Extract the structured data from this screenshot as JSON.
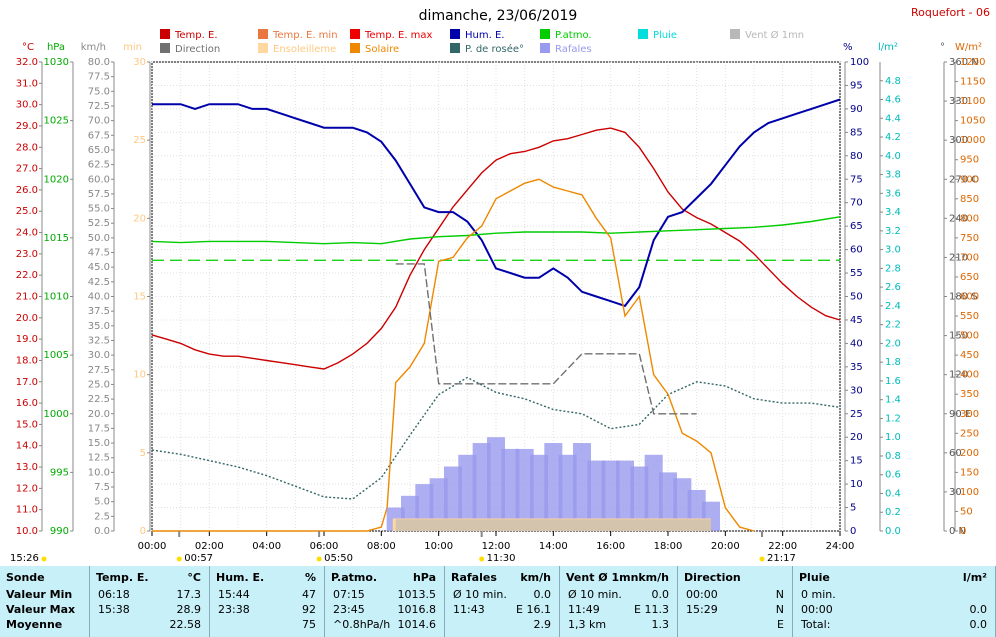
{
  "header": {
    "title": "dimanche, 23/06/2019",
    "station": "Roquefort - 06"
  },
  "legend": [
    {
      "label": "Temp. E.",
      "color": "#cc0000"
    },
    {
      "label": "Temp. E. min",
      "color": "#e87840"
    },
    {
      "label": "Temp. E. max",
      "color": "#ee0000"
    },
    {
      "label": "Hum. E.",
      "color": "#0000aa"
    },
    {
      "label": "P.atmo.",
      "color": "#00cc00"
    },
    {
      "label": "Pluie",
      "color": "#00dddd"
    },
    {
      "label": "Vent Ø 1mn",
      "color": "#b8b8b8"
    },
    {
      "label": "Direction",
      "color": "#707070"
    },
    {
      "label": "Ensoleilleme",
      "color": "#ffd8a0"
    },
    {
      "label": "Solaire",
      "color": "#ee8800"
    },
    {
      "label": "P. de rosée°",
      "color": "#336666"
    },
    {
      "label": "Rafales",
      "color": "#9999ee"
    }
  ],
  "axes_units": {
    "temp": "°C",
    "press": "hPa",
    "wind": "km/h",
    "sun": "min",
    "hum": "%",
    "rain": "l/m²",
    "dir": "°",
    "solar": "W/m²"
  },
  "chart_data": {
    "type": "line",
    "x_unit": "time of day (hours)",
    "xlim": [
      0,
      24
    ],
    "x_ticks": [
      "00:00",
      "02:00",
      "04:00",
      "06:00",
      "08:00",
      "10:00",
      "12:00",
      "14:00",
      "16:00",
      "18:00",
      "20:00",
      "22:00",
      "24:00"
    ],
    "axes": {
      "temp": {
        "range": [
          10,
          32
        ],
        "ticks": [
          "10.0",
          "11.0",
          "12.0",
          "13.0",
          "14.0",
          "15.0",
          "16.0",
          "17.0",
          "18.0",
          "19.0",
          "20.0",
          "21.0",
          "22.0",
          "23.0",
          "24.0",
          "25.0",
          "26.0",
          "27.0",
          "28.0",
          "29.0",
          "30.0",
          "31.0",
          "32.0"
        ],
        "color": "#cc0000"
      },
      "press": {
        "range": [
          990,
          1030
        ],
        "ticks": [
          "990",
          "995",
          "1000",
          "1005",
          "1010",
          "1015",
          "1020",
          "1025",
          "1030"
        ],
        "color": "#00aa00"
      },
      "wind": {
        "range": [
          0,
          80
        ],
        "ticks": [
          "0.0",
          "2.5",
          "5.0",
          "7.5",
          "10.0",
          "12.5",
          "15.0",
          "17.5",
          "20.0",
          "22.5",
          "25.0",
          "27.5",
          "30.0",
          "32.5",
          "35.0",
          "37.5",
          "40.0",
          "42.5",
          "45.0",
          "47.5",
          "50.0",
          "52.5",
          "55.0",
          "57.5",
          "60.0",
          "62.5",
          "65.0",
          "67.5",
          "70.0",
          "72.5",
          "75.0",
          "77.5",
          "80.0"
        ],
        "color": "#888888"
      },
      "sun": {
        "range": [
          0,
          30
        ],
        "ticks": [
          "0",
          "5",
          "10",
          "15",
          "20",
          "25",
          "30"
        ],
        "color": "#ffd8a0"
      },
      "hum": {
        "range": [
          0,
          100
        ],
        "ticks": [
          "0",
          "5",
          "10",
          "15",
          "20",
          "25",
          "30",
          "35",
          "40",
          "45",
          "50",
          "55",
          "60",
          "65",
          "70",
          "75",
          "80",
          "85",
          "90",
          "95",
          "100"
        ],
        "color": "#000088"
      },
      "rain": {
        "range": [
          0,
          5
        ],
        "ticks": [
          "0.0",
          "0.2",
          "0.4",
          "0.6",
          "0.8",
          "1.0",
          "1.2",
          "1.4",
          "1.6",
          "1.8",
          "2.0",
          "2.2",
          "2.4",
          "2.6",
          "2.8",
          "3.0",
          "3.2",
          "3.4",
          "3.6",
          "3.8",
          "4.0",
          "4.2",
          "4.4",
          "4.6",
          "4.8"
        ],
        "color": "#00cccc"
      },
      "dir": {
        "range": [
          0,
          360
        ],
        "ticks": [
          "0 N",
          "30",
          "60",
          "90 E",
          "120",
          "150",
          "180 S",
          "210",
          "240",
          "270 O",
          "300",
          "330",
          "360 N"
        ],
        "color": "#555555"
      },
      "solar": {
        "range": [
          0,
          1200
        ],
        "ticks": [
          "0",
          "50",
          "100",
          "150",
          "200",
          "250",
          "300",
          "350",
          "400",
          "450",
          "500",
          "550",
          "600",
          "650",
          "700",
          "750",
          "800",
          "850",
          "900",
          "950",
          "1000",
          "1050",
          "1100",
          "1150",
          "1200"
        ],
        "color": "#dd6600"
      }
    },
    "series": [
      {
        "name": "Temp. E.",
        "axis": "temp",
        "color": "#cc0000",
        "x": [
          0,
          0.5,
          1,
          1.5,
          2,
          2.5,
          3,
          3.5,
          4,
          4.5,
          5,
          5.5,
          6,
          6.5,
          7,
          7.5,
          8,
          8.5,
          9,
          9.5,
          10,
          10.5,
          11,
          11.5,
          12,
          12.5,
          13,
          13.5,
          14,
          14.5,
          15,
          15.5,
          16,
          16.5,
          17,
          17.5,
          18,
          18.5,
          19,
          19.5,
          20,
          20.5,
          21,
          21.5,
          22,
          22.5,
          23,
          23.5,
          24
        ],
        "y": [
          19.2,
          19.0,
          18.8,
          18.5,
          18.3,
          18.2,
          18.2,
          18.1,
          18.0,
          17.9,
          17.8,
          17.7,
          17.6,
          17.9,
          18.3,
          18.8,
          19.5,
          20.5,
          22.0,
          23.2,
          24.2,
          25.2,
          26.0,
          26.8,
          27.4,
          27.7,
          27.8,
          28.0,
          28.3,
          28.4,
          28.6,
          28.8,
          28.9,
          28.7,
          28.0,
          27.0,
          25.9,
          25.1,
          24.7,
          24.4,
          24.0,
          23.6,
          23.0,
          22.3,
          21.6,
          21.0,
          20.5,
          20.1,
          19.9
        ]
      },
      {
        "name": "Hum. E.",
        "axis": "hum",
        "color": "#0000aa",
        "x": [
          0,
          0.5,
          1,
          1.5,
          2,
          2.5,
          3,
          3.5,
          4,
          4.5,
          5,
          5.5,
          6,
          6.5,
          7,
          7.5,
          8,
          8.5,
          9,
          9.5,
          10,
          10.5,
          11,
          11.5,
          12,
          12.5,
          13,
          13.5,
          14,
          14.5,
          15,
          15.5,
          16,
          16.5,
          17,
          17.5,
          18,
          18.5,
          19,
          19.5,
          20,
          20.5,
          21,
          21.5,
          22,
          22.5,
          23,
          23.5,
          24
        ],
        "y": [
          91,
          91,
          91,
          90,
          91,
          91,
          91,
          90,
          90,
          89,
          88,
          87,
          86,
          86,
          86,
          85,
          83,
          79,
          74,
          69,
          68,
          68,
          66,
          62,
          56,
          55,
          54,
          54,
          56,
          54,
          51,
          50,
          49,
          48,
          52,
          62,
          67,
          68,
          71,
          74,
          78,
          82,
          85,
          87,
          88,
          89,
          90,
          91,
          92
        ]
      },
      {
        "name": "P.atmo.",
        "axis": "press",
        "color": "#00cc00",
        "x": [
          0,
          1,
          2,
          3,
          4,
          5,
          6,
          7,
          8,
          9,
          10,
          11,
          12,
          13,
          14,
          15,
          16,
          17,
          18,
          19,
          20,
          21,
          22,
          23,
          24
        ],
        "y": [
          1014.7,
          1014.6,
          1014.7,
          1014.7,
          1014.7,
          1014.6,
          1014.5,
          1014.6,
          1014.5,
          1014.9,
          1015.1,
          1015.2,
          1015.4,
          1015.5,
          1015.5,
          1015.5,
          1015.4,
          1015.5,
          1015.6,
          1015.7,
          1015.8,
          1015.9,
          1016.1,
          1016.4,
          1016.8
        ]
      },
      {
        "name": "P. de rosée°",
        "axis": "temp",
        "color": "#336666",
        "dashed": true,
        "x": [
          0,
          1,
          2,
          3,
          4,
          5,
          6,
          7,
          8,
          9,
          10,
          11,
          12,
          13,
          14,
          15,
          16,
          17,
          18,
          19,
          20,
          21,
          22,
          23,
          24
        ],
        "y": [
          13.8,
          13.6,
          13.3,
          13.0,
          12.6,
          12.1,
          11.6,
          11.5,
          12.5,
          14.5,
          16.4,
          17.2,
          16.5,
          16.2,
          15.7,
          15.5,
          14.8,
          15.0,
          16.4,
          17.0,
          16.8,
          16.2,
          16.0,
          16.0,
          15.8
        ]
      },
      {
        "name": "Solaire",
        "axis": "solar",
        "color": "#ee8800",
        "x": [
          0,
          7.5,
          8,
          8.2,
          8.5,
          9,
          9.5,
          10,
          10.5,
          11,
          11.5,
          12,
          12.5,
          13,
          13.5,
          14,
          14.5,
          15,
          15.5,
          16,
          16.5,
          17,
          17.5,
          18,
          18.5,
          19,
          19.5,
          20,
          20.5,
          21
        ],
        "y": [
          0,
          0,
          10,
          60,
          380,
          420,
          480,
          690,
          700,
          750,
          780,
          850,
          870,
          890,
          900,
          880,
          870,
          860,
          800,
          750,
          550,
          600,
          400,
          350,
          250,
          230,
          200,
          60,
          10,
          0
        ]
      },
      {
        "name": "Rafales",
        "axis": "wind",
        "color": "#9999ee",
        "x": [
          8.5,
          9,
          9.5,
          10,
          10.5,
          11,
          11.5,
          12,
          12.5,
          13,
          13.5,
          14,
          14.5,
          15,
          15.5,
          16,
          16.5,
          17,
          17.5,
          18,
          18.5,
          19,
          19.5
        ],
        "y": [
          4,
          6,
          8,
          9,
          11,
          13,
          15,
          16,
          14,
          14,
          13,
          15,
          13,
          15,
          12,
          12,
          12,
          11,
          13,
          10,
          9,
          7,
          5
        ]
      },
      {
        "name": "Ensoleilleme",
        "axis": "sun",
        "color": "#ffd8a0",
        "x": [
          8.4,
          19.5
        ],
        "y": [
          0.8,
          0.8
        ]
      },
      {
        "name": "Direction",
        "axis": "dir",
        "color": "#707070",
        "dashed": true,
        "x": [
          8.5,
          9.5,
          10,
          10.5,
          11,
          12,
          13,
          14,
          15,
          16,
          17,
          17.5,
          18,
          19
        ],
        "y": [
          205,
          205,
          113,
          113,
          113,
          113,
          113,
          113,
          136,
          136,
          136,
          90,
          90,
          90
        ]
      },
      {
        "name": "Vent Ø 1mn",
        "axis": "wind",
        "color": "#b8b8b8",
        "x": [
          8.5,
          19.5
        ],
        "y": [
          2,
          2
        ]
      }
    ],
    "reference_line": {
      "axis": "temp",
      "value": 22.7,
      "color": "#00cc00"
    },
    "markers": [
      "00:57",
      "05:50",
      "11:30",
      "21:17"
    ],
    "sun_times": [
      "15:26"
    ]
  },
  "summary": {
    "columns": [
      {
        "title": "Sonde",
        "rows": [
          "Valeur Min",
          "Valeur Max",
          "Moyenne"
        ]
      },
      {
        "title": "Temp. E.",
        "unit": "°C",
        "rows": [
          [
            "06:18",
            "17.3"
          ],
          [
            "15:38",
            "28.9"
          ],
          [
            "",
            "22.58"
          ]
        ]
      },
      {
        "title": "Hum. E.",
        "unit": "%",
        "rows": [
          [
            "15:44",
            "47"
          ],
          [
            "23:38",
            "92"
          ],
          [
            "",
            "75"
          ]
        ]
      },
      {
        "title": "P.atmo.",
        "unit": "hPa",
        "rows": [
          [
            "07:15",
            "1013.5"
          ],
          [
            "23:45",
            "1016.8"
          ],
          [
            "^0.8hPa/h",
            "1014.6"
          ]
        ]
      },
      {
        "title": "Rafales",
        "unit": "km/h",
        "rows": [
          [
            "Ø 10 min.",
            "0.0"
          ],
          [
            "11:43",
            "E 16.1"
          ],
          [
            "",
            "2.9"
          ]
        ]
      },
      {
        "title": "Vent Ø 1mn",
        "unit": "km/h",
        "rows": [
          [
            "Ø 10 min.",
            "0.0"
          ],
          [
            "11:49",
            "E 11.3"
          ],
          [
            "1,3 km",
            "1.3"
          ]
        ]
      },
      {
        "title": "Direction",
        "unit": "",
        "rows": [
          [
            "00:00",
            "N"
          ],
          [
            "15:29",
            "N"
          ],
          [
            "",
            "E"
          ]
        ]
      },
      {
        "title": "Pluie",
        "unit": "l/m²",
        "rows": [
          [
            "0 min.",
            ""
          ],
          [
            "00:00",
            "0.0"
          ],
          [
            "Total:",
            "0.0"
          ]
        ]
      }
    ]
  }
}
